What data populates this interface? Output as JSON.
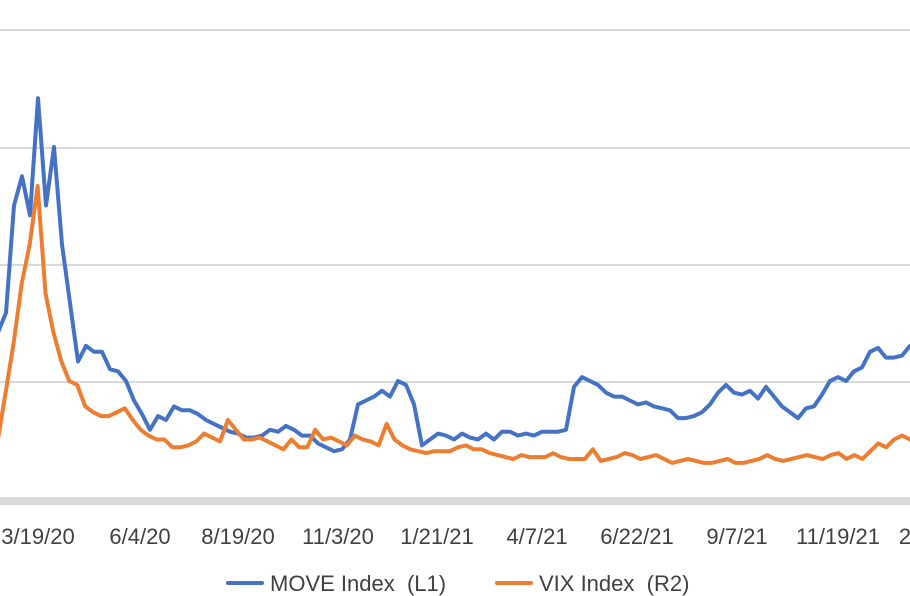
{
  "chart_data": {
    "type": "line",
    "title": "",
    "xlabel": "",
    "ylabel": "",
    "x_tick_labels": [
      "3/19/20",
      "6/4/20",
      "8/19/20",
      "11/3/20",
      "1/21/21",
      "4/7/21",
      "6/22/21",
      "9/7/21",
      "11/19/21",
      "2"
    ],
    "grid": "horizontal",
    "legend_placement": "bottom",
    "series": [
      {
        "name": "MOVE Index  (L1)",
        "color": "#4472C4",
        "values": [
          73,
          85,
          95,
          150,
          165,
          145,
          205,
          150,
          180,
          130,
          100,
          70,
          78,
          75,
          75,
          66,
          65,
          60,
          50,
          43,
          35,
          42,
          40,
          47,
          45,
          45,
          43,
          40,
          38,
          36,
          34,
          33,
          31,
          31,
          32,
          35,
          34,
          37,
          35,
          32,
          32,
          28,
          26,
          24,
          25,
          30,
          48,
          50,
          52,
          55,
          52,
          60,
          58,
          48,
          27,
          30,
          33,
          32,
          30,
          33,
          31,
          30,
          33,
          30,
          34,
          34,
          32,
          33,
          32,
          34,
          34,
          34,
          35,
          57,
          62,
          60,
          58,
          54,
          52,
          52,
          50,
          48,
          49,
          47,
          46,
          45,
          41,
          41,
          42,
          44,
          48,
          54,
          58,
          54,
          53,
          55,
          51,
          57,
          52,
          47,
          44,
          41,
          46,
          47,
          53,
          60,
          62,
          60,
          65,
          67,
          75,
          77,
          72,
          72,
          73,
          78
        ]
      },
      {
        "name": "VIX Index  (R2)",
        "color": "#ED7D31",
        "values": [
          19,
          30,
          55,
          80,
          110,
          130,
          160,
          105,
          85,
          70,
          60,
          58,
          47,
          44,
          42,
          42,
          44,
          46,
          40,
          35,
          32,
          30,
          30,
          26,
          26,
          27,
          29,
          33,
          31,
          29,
          40,
          35,
          30,
          30,
          31,
          29,
          27,
          25,
          30,
          26,
          26,
          35,
          30,
          31,
          29,
          27,
          32,
          30,
          29,
          27,
          38,
          30,
          27,
          25,
          24,
          23,
          24,
          24,
          24,
          26,
          27,
          25,
          25,
          23,
          22,
          21,
          20,
          22,
          21,
          21,
          21,
          23,
          21,
          20,
          20,
          20,
          25,
          19,
          20,
          21,
          23,
          22,
          20,
          21,
          22,
          20,
          18,
          19,
          20,
          19,
          18,
          18,
          19,
          20,
          18,
          18,
          19,
          20,
          22,
          20,
          19,
          20,
          21,
          22,
          21,
          20,
          22,
          23,
          20,
          22,
          20,
          24,
          28,
          26,
          30,
          32,
          30
        ]
      }
    ]
  }
}
